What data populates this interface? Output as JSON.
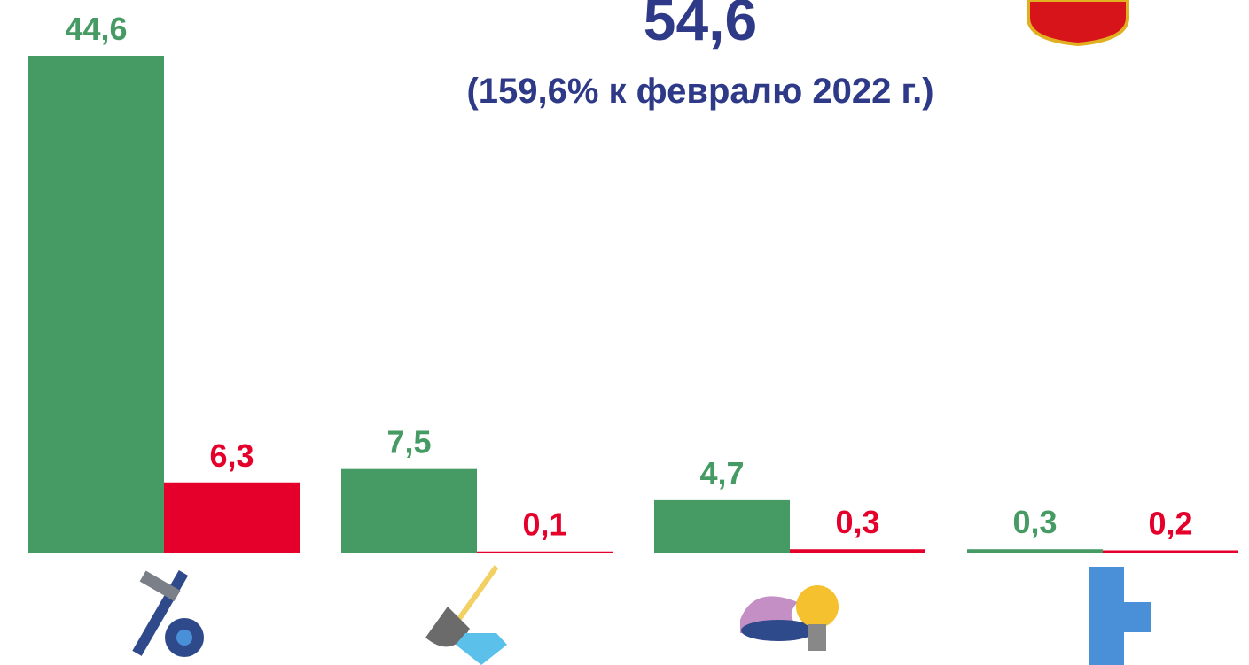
{
  "chart_data": {
    "type": "bar",
    "title": "54,6",
    "subtitle": "(159,6% к февралю 2022 г.)",
    "categories": [
      null,
      null,
      null,
      null
    ],
    "series": [
      {
        "color": "#469b64",
        "values": [
          44.6,
          7.5,
          4.7,
          0.3
        ],
        "value_labels": [
          "44,6",
          "7,5",
          "4,7",
          "0,3"
        ]
      },
      {
        "color": "#e4002b",
        "values": [
          6.3,
          0.1,
          0.3,
          0.2
        ],
        "value_labels": [
          "6,3",
          "0,1",
          "0,3",
          "0,2"
        ]
      }
    ]
  }
}
